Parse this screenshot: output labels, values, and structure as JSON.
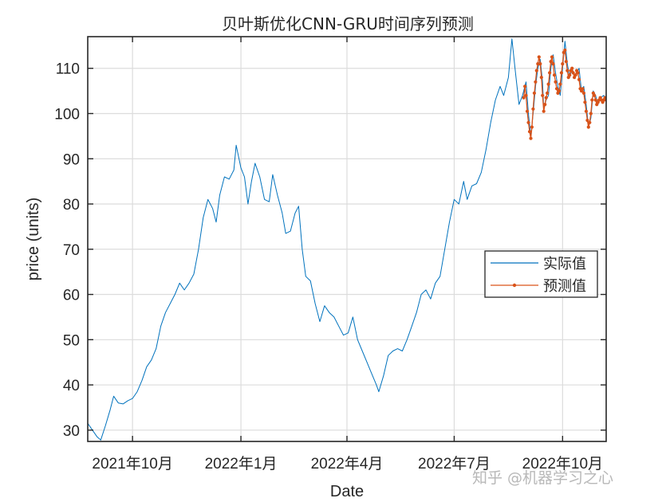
{
  "chart_data": {
    "type": "line",
    "title": "贝叶斯优化CNN-GRU时间序列预测",
    "xlabel": "Date",
    "ylabel": "price (units)",
    "xlim": [
      "2021-08-24",
      "2022-11-07"
    ],
    "ylim": [
      27.5,
      117
    ],
    "yticks": [
      30,
      40,
      50,
      60,
      70,
      80,
      90,
      100,
      110
    ],
    "xticks": [
      {
        "date": "2021-10-01",
        "label": "2021年10月"
      },
      {
        "date": "2022-01-01",
        "label": "2022年1月"
      },
      {
        "date": "2022-04-01",
        "label": "2022年4月"
      },
      {
        "date": "2022-07-01",
        "label": "2022年7月"
      },
      {
        "date": "2022-10-01",
        "label": "2022年10月"
      }
    ],
    "grid": true,
    "legend_position": "right",
    "series": [
      {
        "name": "实际值",
        "color": "#0072BD",
        "marker": "none",
        "points": [
          [
            "2021-08-24",
            31.5
          ],
          [
            "2021-08-28",
            30.0
          ],
          [
            "2021-09-01",
            28.5
          ],
          [
            "2021-09-04",
            27.8
          ],
          [
            "2021-09-08",
            31.0
          ],
          [
            "2021-09-12",
            34.5
          ],
          [
            "2021-09-15",
            37.5
          ],
          [
            "2021-09-19",
            36.0
          ],
          [
            "2021-09-23",
            35.8
          ],
          [
            "2021-09-27",
            36.5
          ],
          [
            "2021-10-01",
            37.0
          ],
          [
            "2021-10-05",
            38.5
          ],
          [
            "2021-10-09",
            41.0
          ],
          [
            "2021-10-13",
            44.0
          ],
          [
            "2021-10-17",
            45.5
          ],
          [
            "2021-10-21",
            48.0
          ],
          [
            "2021-10-25",
            53.0
          ],
          [
            "2021-10-29",
            56.0
          ],
          [
            "2021-11-02",
            58.0
          ],
          [
            "2021-11-06",
            60.0
          ],
          [
            "2021-11-10",
            62.5
          ],
          [
            "2021-11-14",
            61.0
          ],
          [
            "2021-11-18",
            62.5
          ],
          [
            "2021-11-22",
            64.5
          ],
          [
            "2021-11-26",
            70.0
          ],
          [
            "2021-11-30",
            77.0
          ],
          [
            "2021-12-04",
            81.0
          ],
          [
            "2021-12-08",
            79.0
          ],
          [
            "2021-12-11",
            76.0
          ],
          [
            "2021-12-14",
            82.0
          ],
          [
            "2021-12-18",
            86.0
          ],
          [
            "2021-12-22",
            85.5
          ],
          [
            "2021-12-26",
            87.5
          ],
          [
            "2021-12-28",
            93.0
          ],
          [
            "2022-01-01",
            88.0
          ],
          [
            "2022-01-04",
            86.0
          ],
          [
            "2022-01-07",
            80.0
          ],
          [
            "2022-01-10",
            85.0
          ],
          [
            "2022-01-13",
            89.0
          ],
          [
            "2022-01-17",
            86.0
          ],
          [
            "2022-01-21",
            81.0
          ],
          [
            "2022-01-25",
            80.5
          ],
          [
            "2022-01-28",
            86.5
          ],
          [
            "2022-02-01",
            82.0
          ],
          [
            "2022-02-05",
            78.0
          ],
          [
            "2022-02-08",
            73.5
          ],
          [
            "2022-02-12",
            74.0
          ],
          [
            "2022-02-16",
            78.0
          ],
          [
            "2022-02-19",
            79.5
          ],
          [
            "2022-02-22",
            70.0
          ],
          [
            "2022-02-25",
            64.0
          ],
          [
            "2022-03-01",
            63.0
          ],
          [
            "2022-03-05",
            58.0
          ],
          [
            "2022-03-09",
            54.0
          ],
          [
            "2022-03-13",
            57.5
          ],
          [
            "2022-03-17",
            56.0
          ],
          [
            "2022-03-21",
            55.0
          ],
          [
            "2022-03-25",
            53.0
          ],
          [
            "2022-03-29",
            51.0
          ],
          [
            "2022-04-02",
            51.5
          ],
          [
            "2022-04-06",
            55.0
          ],
          [
            "2022-04-10",
            50.0
          ],
          [
            "2022-04-14",
            47.5
          ],
          [
            "2022-04-18",
            45.0
          ],
          [
            "2022-04-22",
            42.5
          ],
          [
            "2022-04-26",
            40.0
          ],
          [
            "2022-04-28",
            38.5
          ],
          [
            "2022-05-02",
            42.0
          ],
          [
            "2022-05-06",
            46.5
          ],
          [
            "2022-05-10",
            47.5
          ],
          [
            "2022-05-14",
            48.0
          ],
          [
            "2022-05-18",
            47.5
          ],
          [
            "2022-05-22",
            50.0
          ],
          [
            "2022-05-26",
            53.0
          ],
          [
            "2022-05-30",
            56.0
          ],
          [
            "2022-06-03",
            60.0
          ],
          [
            "2022-06-07",
            61.0
          ],
          [
            "2022-06-11",
            59.0
          ],
          [
            "2022-06-15",
            62.5
          ],
          [
            "2022-06-19",
            64.0
          ],
          [
            "2022-06-23",
            70.0
          ],
          [
            "2022-06-27",
            76.0
          ],
          [
            "2022-07-01",
            81.0
          ],
          [
            "2022-07-05",
            80.0
          ],
          [
            "2022-07-09",
            85.0
          ],
          [
            "2022-07-12",
            81.0
          ],
          [
            "2022-07-16",
            84.0
          ],
          [
            "2022-07-20",
            84.5
          ],
          [
            "2022-07-24",
            87.0
          ],
          [
            "2022-07-28",
            92.0
          ],
          [
            "2022-08-01",
            98.0
          ],
          [
            "2022-08-05",
            103.0
          ],
          [
            "2022-08-09",
            106.0
          ],
          [
            "2022-08-12",
            104.0
          ],
          [
            "2022-08-16",
            108.0
          ],
          [
            "2022-08-19",
            116.5
          ],
          [
            "2022-08-22",
            109.0
          ],
          [
            "2022-08-25",
            102.0
          ],
          [
            "2022-08-28",
            104.0
          ],
          [
            "2022-08-31",
            107.0
          ],
          [
            "2022-09-02",
            100.0
          ],
          [
            "2022-09-04",
            95.0
          ],
          [
            "2022-09-06",
            100.0
          ],
          [
            "2022-09-08",
            106.0
          ],
          [
            "2022-09-10",
            110.0
          ],
          [
            "2022-09-12",
            112.0
          ],
          [
            "2022-09-14",
            107.0
          ],
          [
            "2022-09-15",
            101.0
          ],
          [
            "2022-09-17",
            103.0
          ],
          [
            "2022-09-19",
            104.0
          ],
          [
            "2022-09-21",
            110.0
          ],
          [
            "2022-09-23",
            113.0
          ],
          [
            "2022-09-25",
            109.0
          ],
          [
            "2022-09-27",
            106.0
          ],
          [
            "2022-09-29",
            104.0
          ],
          [
            "2022-10-01",
            110.0
          ],
          [
            "2022-10-03",
            116.0
          ],
          [
            "2022-10-05",
            111.0
          ],
          [
            "2022-10-07",
            108.0
          ],
          [
            "2022-10-09",
            110.0
          ],
          [
            "2022-10-11",
            108.5
          ],
          [
            "2022-10-13",
            109.0
          ],
          [
            "2022-10-15",
            110.0
          ],
          [
            "2022-10-17",
            105.0
          ],
          [
            "2022-10-19",
            106.0
          ],
          [
            "2022-10-21",
            102.0
          ],
          [
            "2022-10-23",
            97.0
          ],
          [
            "2022-10-25",
            99.0
          ],
          [
            "2022-10-27",
            105.0
          ],
          [
            "2022-10-29",
            104.0
          ],
          [
            "2022-10-31",
            102.0
          ],
          [
            "2022-11-02",
            103.5
          ],
          [
            "2022-11-05",
            104.0
          ],
          [
            "2022-11-07",
            103.0
          ]
        ]
      },
      {
        "name": "预测值",
        "color": "#D95319",
        "marker": "dot",
        "points": [
          [
            "2022-08-29",
            103.5
          ],
          [
            "2022-08-30",
            106.0
          ],
          [
            "2022-08-31",
            104.0
          ],
          [
            "2022-09-01",
            100.5
          ],
          [
            "2022-09-02",
            98.0
          ],
          [
            "2022-09-03",
            96.0
          ],
          [
            "2022-09-04",
            94.5
          ],
          [
            "2022-09-05",
            97.0
          ],
          [
            "2022-09-06",
            101.0
          ],
          [
            "2022-09-07",
            104.5
          ],
          [
            "2022-09-08",
            107.0
          ],
          [
            "2022-09-09",
            109.5
          ],
          [
            "2022-09-10",
            111.0
          ],
          [
            "2022-09-11",
            112.5
          ],
          [
            "2022-09-12",
            111.0
          ],
          [
            "2022-09-13",
            108.0
          ],
          [
            "2022-09-14",
            104.0
          ],
          [
            "2022-09-15",
            100.5
          ],
          [
            "2022-09-16",
            102.0
          ],
          [
            "2022-09-17",
            103.5
          ],
          [
            "2022-09-18",
            104.5
          ],
          [
            "2022-09-19",
            106.5
          ],
          [
            "2022-09-20",
            109.0
          ],
          [
            "2022-09-21",
            111.5
          ],
          [
            "2022-09-22",
            112.5
          ],
          [
            "2022-09-23",
            111.0
          ],
          [
            "2022-09-24",
            108.5
          ],
          [
            "2022-09-25",
            107.0
          ],
          [
            "2022-09-26",
            105.5
          ],
          [
            "2022-09-27",
            104.5
          ],
          [
            "2022-09-28",
            105.0
          ],
          [
            "2022-09-29",
            106.5
          ],
          [
            "2022-09-30",
            109.0
          ],
          [
            "2022-10-01",
            111.0
          ],
          [
            "2022-10-02",
            113.5
          ],
          [
            "2022-10-03",
            114.0
          ],
          [
            "2022-10-04",
            111.5
          ],
          [
            "2022-10-05",
            109.5
          ],
          [
            "2022-10-06",
            108.0
          ],
          [
            "2022-10-07",
            108.5
          ],
          [
            "2022-10-08",
            109.5
          ],
          [
            "2022-10-09",
            110.0
          ],
          [
            "2022-10-10",
            109.0
          ],
          [
            "2022-10-11",
            108.0
          ],
          [
            "2022-10-12",
            108.5
          ],
          [
            "2022-10-13",
            109.5
          ],
          [
            "2022-10-14",
            109.0
          ],
          [
            "2022-10-15",
            107.5
          ],
          [
            "2022-10-16",
            105.5
          ],
          [
            "2022-10-17",
            105.0
          ],
          [
            "2022-10-18",
            105.5
          ],
          [
            "2022-10-19",
            104.5
          ],
          [
            "2022-10-20",
            102.5
          ],
          [
            "2022-10-21",
            100.5
          ],
          [
            "2022-10-22",
            98.5
          ],
          [
            "2022-10-23",
            97.0
          ],
          [
            "2022-10-24",
            98.0
          ],
          [
            "2022-10-25",
            100.0
          ],
          [
            "2022-10-26",
            103.0
          ],
          [
            "2022-10-27",
            104.5
          ],
          [
            "2022-10-28",
            104.0
          ],
          [
            "2022-10-29",
            103.0
          ],
          [
            "2022-10-30",
            102.0
          ],
          [
            "2022-10-31",
            102.5
          ],
          [
            "2022-11-01",
            103.0
          ],
          [
            "2022-11-02",
            103.5
          ],
          [
            "2022-11-03",
            103.0
          ],
          [
            "2022-11-04",
            102.5
          ],
          [
            "2022-11-05",
            103.0
          ],
          [
            "2022-11-06",
            103.5
          ],
          [
            "2022-11-07",
            103.0
          ]
        ]
      }
    ]
  },
  "watermark": "知乎 @机器学习之心"
}
